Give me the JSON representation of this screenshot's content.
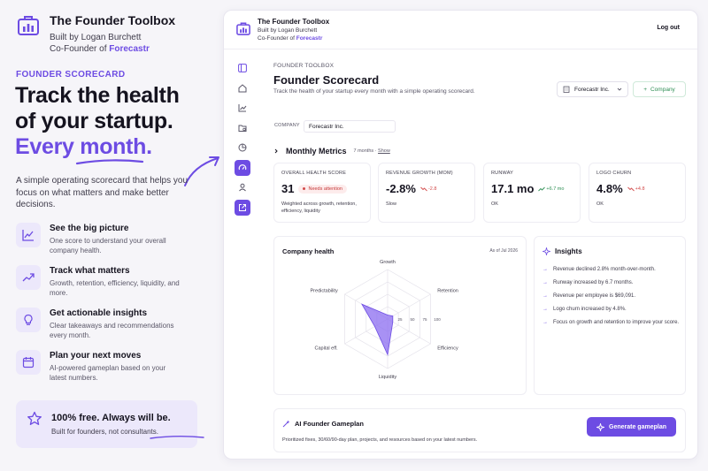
{
  "brand": {
    "title": "The Founder Toolbox",
    "built_by": "Built by Logan Burchett",
    "cofounder_prefix": "Co-Founder of",
    "cofounder_company": "Forecastr"
  },
  "hero": {
    "eyebrow": "FOUNDER SCORECARD",
    "headline_line1": "Track the health",
    "headline_line2": "of your startup.",
    "headline_line3": "Every month.",
    "lead": "A simple operating scorecard that helps you focus on what matters and make better decisions."
  },
  "features": [
    {
      "icon": "line-chart-icon",
      "title": "See the big picture",
      "desc": "One score to understand your overall company health."
    },
    {
      "icon": "trend-up-icon",
      "title": "Track what matters",
      "desc": "Growth, retention, efficiency, liquidity, and more."
    },
    {
      "icon": "lightbulb-icon",
      "title": "Get actionable insights",
      "desc": "Clear takeaways and recommendations every month."
    },
    {
      "icon": "calendar-icon",
      "title": "Plan your next moves",
      "desc": "AI-powered gameplan based on your latest numbers."
    }
  ],
  "free_card": {
    "icon": "star-icon",
    "title": "100% free. Always will be.",
    "subtitle": "Built for founders, not consultants."
  },
  "app": {
    "title": "The Founder Toolbox",
    "built_by": "Built by Logan Burchett",
    "cofounder_prefix": "Co-Founder of",
    "cofounder_company": "Forecastr",
    "logout": "Log out",
    "rail_icons": [
      "sidebar-icon",
      "home-icon",
      "chart-icon",
      "folder-icon",
      "pie-chart-icon",
      "gauge-icon",
      "user-icon",
      "external-link-icon"
    ],
    "active_rail_index": 5
  },
  "page": {
    "breadcrumb": "FOUNDER TOOLBOX",
    "title": "Founder Scorecard",
    "subtitle": "Track the health of your startup every month with a simple operating scorecard.",
    "selected_company": "Forecastr Inc.",
    "add_company_label": "Company",
    "company_label": "COMPANY",
    "company_value": "Forecastr Inc."
  },
  "metrics": {
    "title": "Monthly Metrics",
    "count_label": "7 months",
    "show_label": "Show"
  },
  "kpis": [
    {
      "label": "OVERALL HEALTH SCORE",
      "value": "31",
      "badge": "Needs attention",
      "note": "Weighted across growth, retention, efficiency, liquidity"
    },
    {
      "label": "REVENUE GROWTH (MOM)",
      "value": "-2.8%",
      "delta": "-2.8",
      "delta_dir": "down",
      "note": "Slow"
    },
    {
      "label": "RUNWAY",
      "value": "17.1 mo",
      "delta": "+6.7 mo",
      "delta_dir": "up",
      "note": "OK"
    },
    {
      "label": "LOGO CHURN",
      "value": "4.8%",
      "delta": "+4.8",
      "delta_dir": "down",
      "note": "OK"
    }
  ],
  "health": {
    "title": "Company health",
    "as_of": "As of Jul 2026"
  },
  "chart_data": {
    "type": "radar",
    "title": "Company health",
    "axes": [
      "Growth",
      "Retention",
      "Efficiency",
      "Liquidity",
      "Capital eff.",
      "Predictability"
    ],
    "ticks": [
      "25",
      "50",
      "75",
      "100"
    ],
    "rmax": 100,
    "values": [
      8,
      12,
      12,
      72,
      30,
      60
    ],
    "color": "#8b6cf0"
  },
  "insights": {
    "title": "Insights",
    "items": [
      "Revenue declined 2.8% month-over-month.",
      "Runway increased by 6.7 months.",
      "Revenue per employee is $69,091.",
      "Logo churn increased by 4.8%.",
      "Focus on growth and retention to improve your score."
    ]
  },
  "gameplan": {
    "title": "AI Founder Gameplan",
    "desc": "Prioritized fixes, 30/60/90-day plan, projects, and resources based on your latest numbers.",
    "button": "Generate gameplan"
  },
  "colors": {
    "accent": "#6d4ce3",
    "accent_soft": "#ece8fb",
    "negative": "#d24a4a",
    "positive": "#2f8f55"
  }
}
